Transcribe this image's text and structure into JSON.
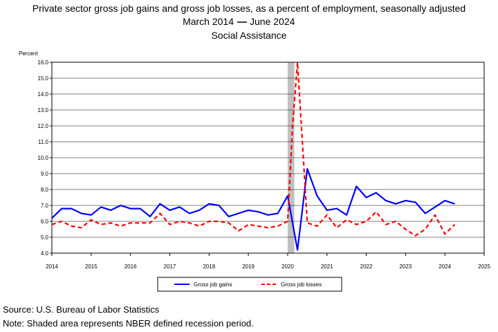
{
  "chart_data": {
    "type": "line",
    "title": "Private sector gross job gains and gross job losses, as a percent of employment, seasonally adjusted",
    "subtitle_date_start": "March 2014",
    "subtitle_date_end": "June 2024",
    "subtitle2": "Social Assistance",
    "ylabel": "Percent",
    "ylim": [
      4.0,
      16.0
    ],
    "xlim": [
      2014,
      2025
    ],
    "y_ticks": [
      "4.0",
      "5.0",
      "6.0",
      "7.0",
      "8.0",
      "9.0",
      "10.0",
      "11.0",
      "12.0",
      "13.0",
      "14.0",
      "15.0",
      "16.0"
    ],
    "x_ticks": [
      "2014",
      "2015",
      "2016",
      "2017",
      "2018",
      "2019",
      "2020",
      "2021",
      "2022",
      "2023",
      "2024",
      "2025"
    ],
    "recession": {
      "start": 2020.0,
      "end": 2020.17
    },
    "grid": "horizontal",
    "legend_position": "bottom",
    "series": [
      {
        "name": "Gross job gains",
        "color": "#0000ff",
        "style": "solid",
        "points": [
          [
            2014.0,
            6.2
          ],
          [
            2014.25,
            6.8
          ],
          [
            2014.5,
            6.8
          ],
          [
            2014.75,
            6.5
          ],
          [
            2015.0,
            6.4
          ],
          [
            2015.25,
            6.9
          ],
          [
            2015.5,
            6.7
          ],
          [
            2015.75,
            7.0
          ],
          [
            2016.0,
            6.8
          ],
          [
            2016.25,
            6.8
          ],
          [
            2016.5,
            6.3
          ],
          [
            2016.75,
            7.1
          ],
          [
            2017.0,
            6.7
          ],
          [
            2017.25,
            6.9
          ],
          [
            2017.5,
            6.5
          ],
          [
            2017.75,
            6.7
          ],
          [
            2018.0,
            7.1
          ],
          [
            2018.25,
            7.0
          ],
          [
            2018.5,
            6.3
          ],
          [
            2018.75,
            6.5
          ],
          [
            2019.0,
            6.7
          ],
          [
            2019.25,
            6.6
          ],
          [
            2019.5,
            6.4
          ],
          [
            2019.75,
            6.5
          ],
          [
            2020.0,
            7.6
          ],
          [
            2020.25,
            4.2
          ],
          [
            2020.5,
            9.3
          ],
          [
            2020.75,
            7.6
          ],
          [
            2021.0,
            6.7
          ],
          [
            2021.25,
            6.8
          ],
          [
            2021.5,
            6.4
          ],
          [
            2021.75,
            8.2
          ],
          [
            2022.0,
            7.5
          ],
          [
            2022.25,
            7.8
          ],
          [
            2022.5,
            7.3
          ],
          [
            2022.75,
            7.1
          ],
          [
            2023.0,
            7.3
          ],
          [
            2023.25,
            7.2
          ],
          [
            2023.5,
            6.5
          ],
          [
            2023.75,
            6.9
          ],
          [
            2024.0,
            7.3
          ],
          [
            2024.25,
            7.1
          ]
        ]
      },
      {
        "name": "Gross job losses",
        "color": "#ff0000",
        "style": "dashed",
        "points": [
          [
            2014.0,
            5.8
          ],
          [
            2014.25,
            6.0
          ],
          [
            2014.5,
            5.7
          ],
          [
            2014.75,
            5.6
          ],
          [
            2015.0,
            6.1
          ],
          [
            2015.25,
            5.8
          ],
          [
            2015.5,
            5.9
          ],
          [
            2015.75,
            5.7
          ],
          [
            2016.0,
            5.9
          ],
          [
            2016.25,
            5.9
          ],
          [
            2016.5,
            5.9
          ],
          [
            2016.75,
            6.5
          ],
          [
            2017.0,
            5.8
          ],
          [
            2017.25,
            6.0
          ],
          [
            2017.5,
            5.9
          ],
          [
            2017.75,
            5.7
          ],
          [
            2018.0,
            6.0
          ],
          [
            2018.25,
            6.0
          ],
          [
            2018.5,
            5.9
          ],
          [
            2018.75,
            5.4
          ],
          [
            2019.0,
            5.8
          ],
          [
            2019.25,
            5.7
          ],
          [
            2019.5,
            5.6
          ],
          [
            2019.75,
            5.7
          ],
          [
            2020.0,
            6.0
          ],
          [
            2020.125,
            12.0
          ],
          [
            2020.25,
            16.0
          ],
          [
            2020.5,
            5.9
          ],
          [
            2020.75,
            5.7
          ],
          [
            2021.0,
            6.4
          ],
          [
            2021.25,
            5.6
          ],
          [
            2021.5,
            6.1
          ],
          [
            2021.75,
            5.8
          ],
          [
            2022.0,
            6.0
          ],
          [
            2022.25,
            6.6
          ],
          [
            2022.5,
            5.8
          ],
          [
            2022.75,
            6.0
          ],
          [
            2023.0,
            5.5
          ],
          [
            2023.25,
            5.1
          ],
          [
            2023.5,
            5.5
          ],
          [
            2023.75,
            6.4
          ],
          [
            2024.0,
            5.2
          ],
          [
            2024.25,
            5.8
          ]
        ]
      }
    ]
  },
  "footer": {
    "source": "Source: U.S. Bureau of Labor Statistics",
    "note": "Note: Shaded area represents NBER defined recession period."
  }
}
